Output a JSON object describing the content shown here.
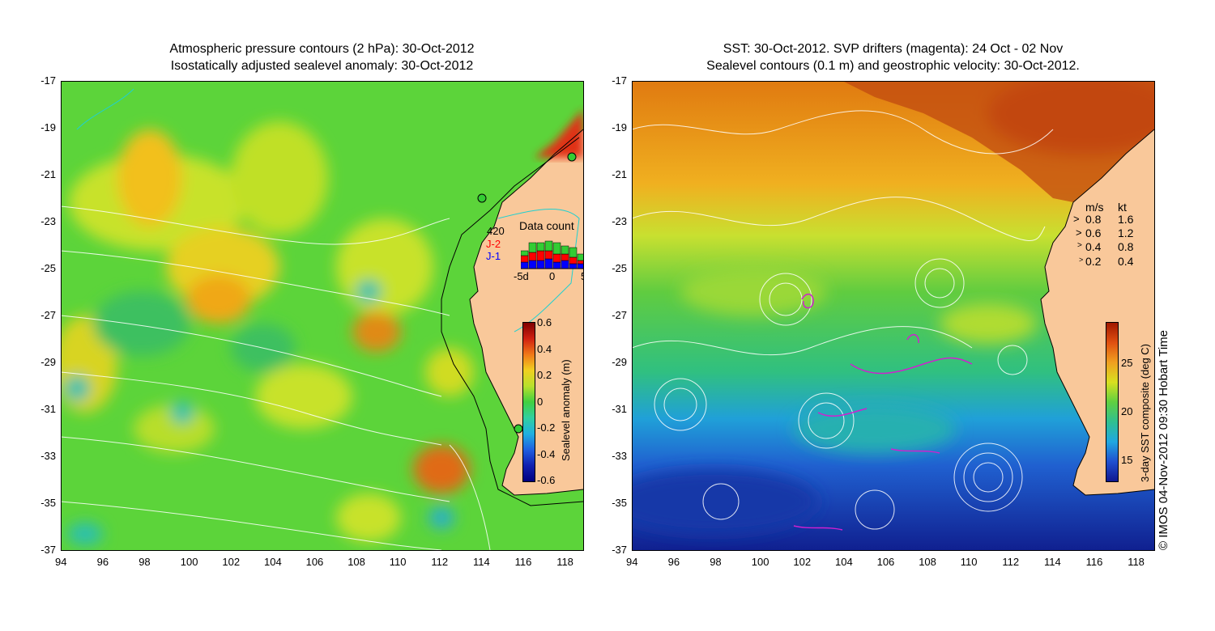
{
  "left": {
    "title_line1": "Atmospheric pressure contours (2 hPa): 30-Oct-2012",
    "title_line2": "Isostatically adjusted sealevel anomaly: 30-Oct-2012",
    "colorbar_label": "Sealevel anomaly (m)",
    "colorbar_ticks": [
      "0.6",
      "0.4",
      "0.2",
      "0",
      "-0.2",
      "-0.4",
      "-0.6"
    ],
    "data_count": {
      "title": "Data count",
      "max_label": "420",
      "legend_j2": "J-2",
      "legend_j1": "J-1",
      "x_ticks": [
        "-5d",
        "0",
        "5"
      ],
      "colors": {
        "j2": "#ff0000",
        "j1": "#0000ff",
        "other": "#33cc33"
      }
    }
  },
  "right": {
    "title_line1": "SST: 30-Oct-2012. SVP drifters (magenta): 24 Oct - 02 Nov",
    "title_line2": "Sealevel contours (0.1 m) and geostrophic velocity: 30-Oct-2012.",
    "colorbar_label": "3-day SST composite (deg C)",
    "colorbar_ticks": [
      "25",
      "20",
      "15"
    ],
    "velocity_legend": {
      "header_ms": "m/s",
      "header_kt": "kt",
      "rows": [
        {
          "ms": "0.8",
          "kt": "1.6"
        },
        {
          "ms": "0.6",
          "kt": "1.2"
        },
        {
          "ms": "0.4",
          "kt": "0.8"
        },
        {
          "ms": "0.2",
          "kt": "0.4"
        }
      ]
    }
  },
  "axes": {
    "lat_ticks": [
      "-17",
      "-19",
      "-21",
      "-23",
      "-25",
      "-27",
      "-29",
      "-31",
      "-33",
      "-35",
      "-37"
    ],
    "lon_ticks": [
      "94",
      "96",
      "98",
      "100",
      "102",
      "104",
      "106",
      "108",
      "110",
      "112",
      "114",
      "116",
      "118"
    ]
  },
  "copyright": "© IMOS 04-Nov-2012 09:30 Hobart Time",
  "colors": {
    "land": "#f9c89a",
    "coastline": "#000000",
    "contours": "#ffffff"
  }
}
